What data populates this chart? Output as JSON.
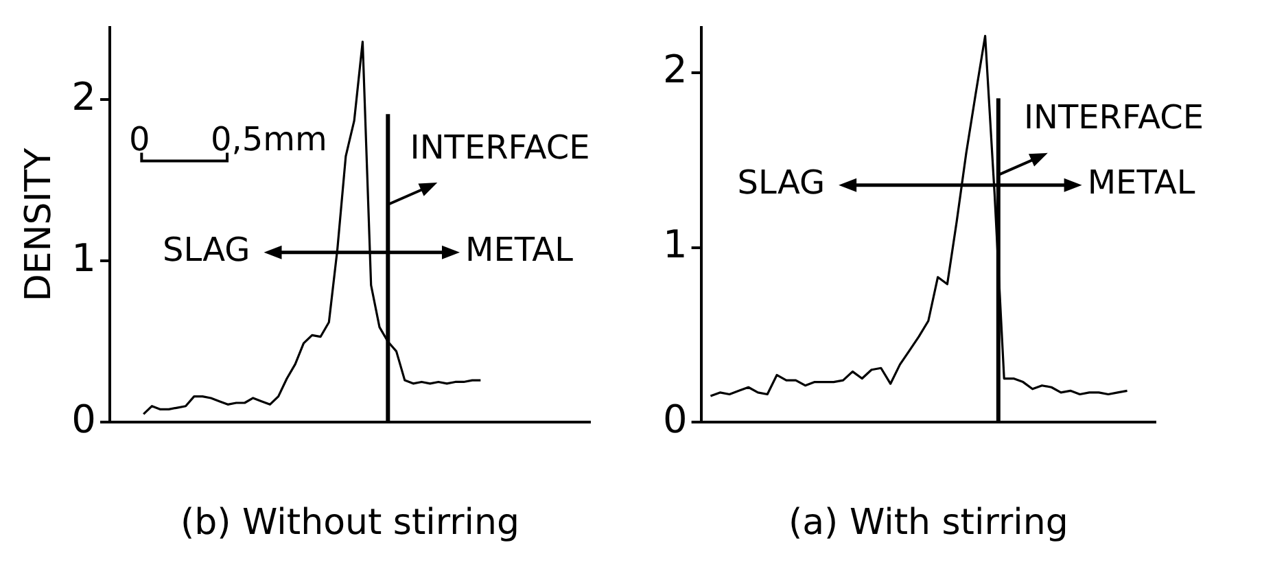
{
  "chart_data": [
    {
      "type": "line",
      "xlabel": "(b) Without stirring",
      "ylabel": "DENSITY",
      "ylim": [
        0,
        2.45
      ],
      "yticks": [
        0,
        1,
        2
      ],
      "grid": false,
      "marker": "none",
      "line_style": "solid",
      "categories": [
        null,
        null,
        null,
        null,
        null,
        null,
        null,
        null,
        null,
        null,
        null,
        null,
        null,
        null,
        null,
        null,
        null,
        null,
        null,
        null,
        null,
        null,
        null,
        null,
        null,
        null,
        null,
        null,
        null,
        null,
        null,
        null,
        null,
        null,
        null,
        null,
        null,
        null,
        null,
        null,
        null,
        null,
        null,
        null,
        null,
        null,
        null,
        null,
        null,
        null,
        null,
        null,
        null,
        null,
        null,
        null,
        null,
        null
      ],
      "series": [
        {
          "color": "#000000",
          "values": [
            null,
            null,
            null,
            null,
            0.05,
            0.1,
            0.08,
            0.08,
            0.09,
            0.1,
            0.16,
            0.16,
            0.15,
            0.13,
            0.11,
            0.12,
            0.12,
            0.15,
            0.13,
            0.11,
            0.16,
            0.27,
            0.36,
            0.49,
            0.54,
            0.53,
            0.62,
            1.07,
            1.65,
            1.87,
            2.36,
            0.85,
            0.59,
            0.5,
            0.44,
            0.26,
            0.24,
            0.25,
            0.24,
            0.25,
            0.24,
            0.25,
            0.25,
            0.26,
            0.26,
            null,
            null,
            null,
            null,
            null,
            null,
            null,
            null,
            null,
            null,
            null,
            null,
            null
          ]
        }
      ],
      "annotations": [
        "0",
        "0,5mm",
        "INTERFACE",
        "SLAG",
        "METAL"
      ]
    },
    {
      "type": "line",
      "xlabel": "(a) With stirring",
      "ylim": [
        0,
        2.26
      ],
      "yticks": [
        0,
        1,
        2
      ],
      "grid": false,
      "marker": "none",
      "line_style": "solid",
      "categories": [
        null,
        null,
        null,
        null,
        null,
        null,
        null,
        null,
        null,
        null,
        null,
        null,
        null,
        null,
        null,
        null,
        null,
        null,
        null,
        null,
        null,
        null,
        null,
        null,
        null,
        null,
        null,
        null,
        null,
        null,
        null,
        null,
        null,
        null,
        null,
        null,
        null,
        null,
        null,
        null,
        null,
        null,
        null,
        null,
        null,
        null,
        null,
        null,
        null
      ],
      "series": [
        {
          "color": "#000000",
          "values": [
            null,
            0.15,
            0.17,
            0.16,
            0.18,
            0.2,
            0.17,
            0.16,
            0.27,
            0.24,
            0.24,
            0.21,
            0.23,
            0.23,
            0.23,
            0.24,
            0.29,
            0.25,
            0.3,
            0.31,
            0.22,
            0.33,
            0.41,
            0.49,
            0.58,
            0.83,
            0.79,
            1.15,
            1.54,
            1.88,
            2.21,
            1.3,
            0.25,
            0.25,
            0.23,
            0.19,
            0.21,
            0.2,
            0.17,
            0.18,
            0.16,
            0.17,
            0.17,
            0.16,
            0.17,
            0.18,
            null,
            null,
            null
          ]
        }
      ],
      "annotations": [
        "INTERFACE",
        "SLAG",
        "METAL"
      ]
    }
  ]
}
